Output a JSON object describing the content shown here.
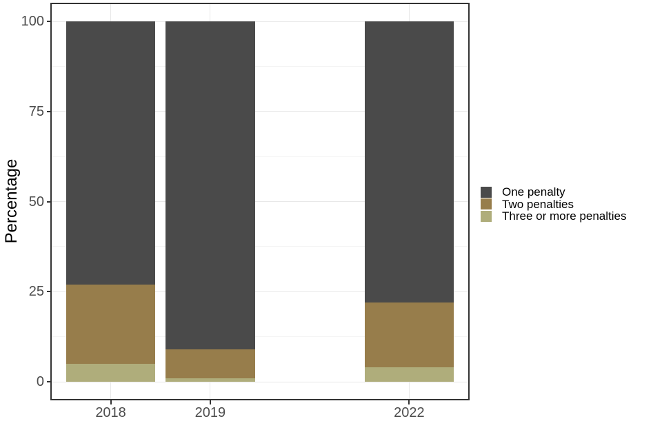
{
  "chart_data": {
    "type": "bar",
    "variant": "stacked-percentage-column",
    "title": "",
    "xlabel": "",
    "ylabel": "Percentage",
    "categories": [
      "2018",
      "2019",
      "2022"
    ],
    "category_positions": [
      1,
      2,
      4
    ],
    "axis_domain_positions": [
      0.4,
      4.6
    ],
    "bar_width_in_positions": 0.9,
    "series": [
      {
        "name": "One penalty",
        "color": "#4A4A4A",
        "values": [
          73,
          91,
          78
        ]
      },
      {
        "name": "Two penalties",
        "color": "#977D4B",
        "values": [
          22,
          8,
          18
        ]
      },
      {
        "name": "Three or more penalties",
        "color": "#AFAD7B",
        "values": [
          5,
          1,
          4
        ]
      }
    ],
    "stack_order_bottom_to_top": [
      "Three or more penalties",
      "Two penalties",
      "One penalty"
    ],
    "ylim": [
      0,
      100
    ],
    "y_major_ticks": [
      "0",
      "25",
      "50",
      "75",
      "100"
    ],
    "y_major_tick_values": [
      0,
      25,
      50,
      75,
      100
    ],
    "y_minor_tick_values": [
      12.5,
      37.5,
      62.5,
      87.5
    ],
    "legend_position": "right-center",
    "grid": "horizontal major+minor, vertical major at category centers"
  },
  "colors": {
    "background": "#FFFFFF",
    "panel_border": "#333333",
    "grid_major": "#E8E8E8",
    "grid_minor": "#F4F4F4",
    "tick_mark": "#333333",
    "axis_text": "#4D4D4D",
    "axis_title_text": "#000000",
    "legend_text": "#000000"
  }
}
